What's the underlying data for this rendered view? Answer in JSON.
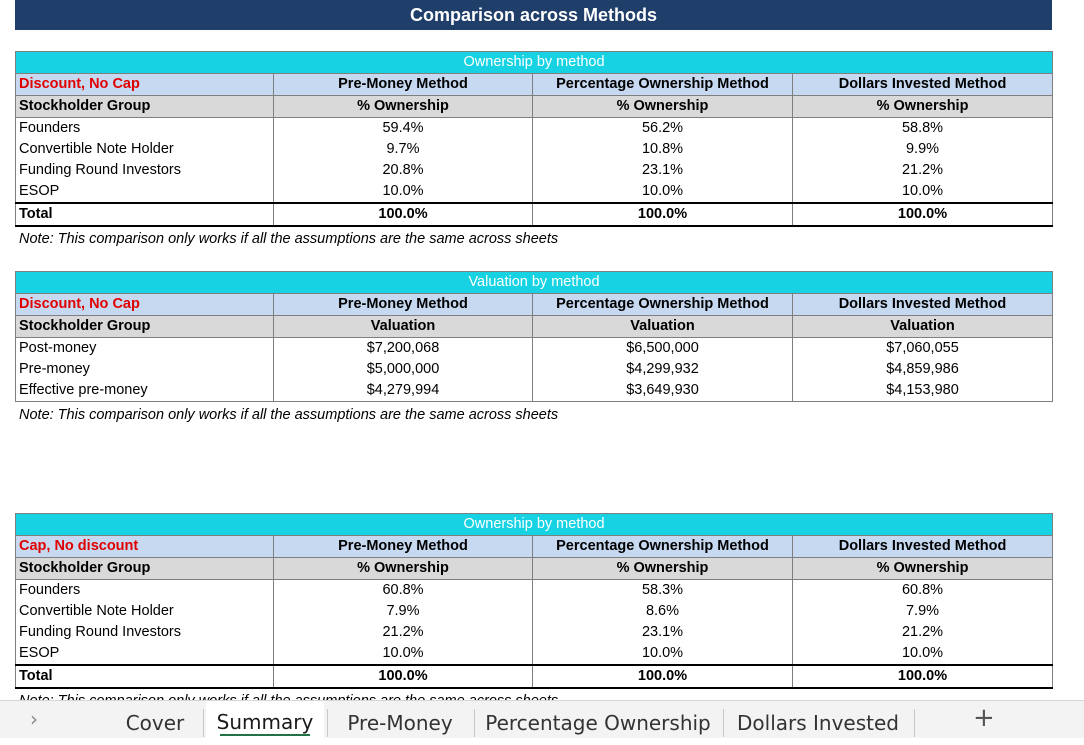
{
  "banner": "Comparison across Methods",
  "note": "Note: This comparison only works if all the assumptions are the same across sheets",
  "sections": [
    {
      "bar": "Ownership by method",
      "scenario": "Discount, No Cap",
      "methods": [
        "Pre-Money Method",
        "Percentage Ownership Method",
        "Dollars Invested Method"
      ],
      "group_label": "Stockholder Group",
      "metric": "% Ownership",
      "rows": [
        {
          "label": "Founders",
          "values": [
            "59.4%",
            "56.2%",
            "58.8%"
          ]
        },
        {
          "label": "Convertible Note Holder",
          "values": [
            "9.7%",
            "10.8%",
            "9.9%"
          ]
        },
        {
          "label": "Funding Round Investors",
          "values": [
            "20.8%",
            "23.1%",
            "21.2%"
          ]
        },
        {
          "label": "ESOP",
          "values": [
            "10.0%",
            "10.0%",
            "10.0%"
          ]
        }
      ],
      "total": {
        "label": "Total",
        "values": [
          "100.0%",
          "100.0%",
          "100.0%"
        ]
      }
    },
    {
      "bar": "Valuation by method",
      "scenario": "Discount, No Cap",
      "methods": [
        "Pre-Money Method",
        "Percentage Ownership Method",
        "Dollars Invested Method"
      ],
      "group_label": "Stockholder Group",
      "metric": "Valuation",
      "rows": [
        {
          "label": "Post-money",
          "values": [
            "$7,200,068",
            "$6,500,000",
            "$7,060,055"
          ]
        },
        {
          "label": "Pre-money",
          "values": [
            "$5,000,000",
            "$4,299,932",
            "$4,859,986"
          ]
        },
        {
          "label": "Effective pre-money",
          "values": [
            "$4,279,994",
            "$3,649,930",
            "$4,153,980"
          ]
        }
      ]
    },
    {
      "bar": "Ownership by method",
      "scenario": "Cap, No discount",
      "methods": [
        "Pre-Money Method",
        "Percentage Ownership Method",
        "Dollars Invested Method"
      ],
      "group_label": "Stockholder Group",
      "metric": "% Ownership",
      "rows": [
        {
          "label": "Founders",
          "values": [
            "60.8%",
            "58.3%",
            "60.8%"
          ]
        },
        {
          "label": "Convertible Note Holder",
          "values": [
            "7.9%",
            "8.6%",
            "7.9%"
          ]
        },
        {
          "label": "Funding Round Investors",
          "values": [
            "21.2%",
            "23.1%",
            "21.2%"
          ]
        },
        {
          "label": "ESOP",
          "values": [
            "10.0%",
            "10.0%",
            "10.0%"
          ]
        }
      ],
      "total": {
        "label": "Total",
        "values": [
          "100.0%",
          "100.0%",
          "100.0%"
        ]
      }
    }
  ],
  "tabs": [
    {
      "label": "Cover",
      "active": false
    },
    {
      "label": "Summary",
      "active": true
    },
    {
      "label": "Pre-Money",
      "active": false
    },
    {
      "label": "Percentage Ownership",
      "active": false
    },
    {
      "label": "Dollars Invested",
      "active": false
    }
  ],
  "tab_nav_icon": "chevron-right-icon",
  "add_sheet_icon": "plus-icon",
  "colors": {
    "banner": "#1f3e6a",
    "section_bar": "#17d2e2",
    "method_header": "#c6d9f1",
    "sub_header": "#d9d9d9",
    "scenario_text": "#e00000",
    "active_tab_underline": "#217346"
  }
}
